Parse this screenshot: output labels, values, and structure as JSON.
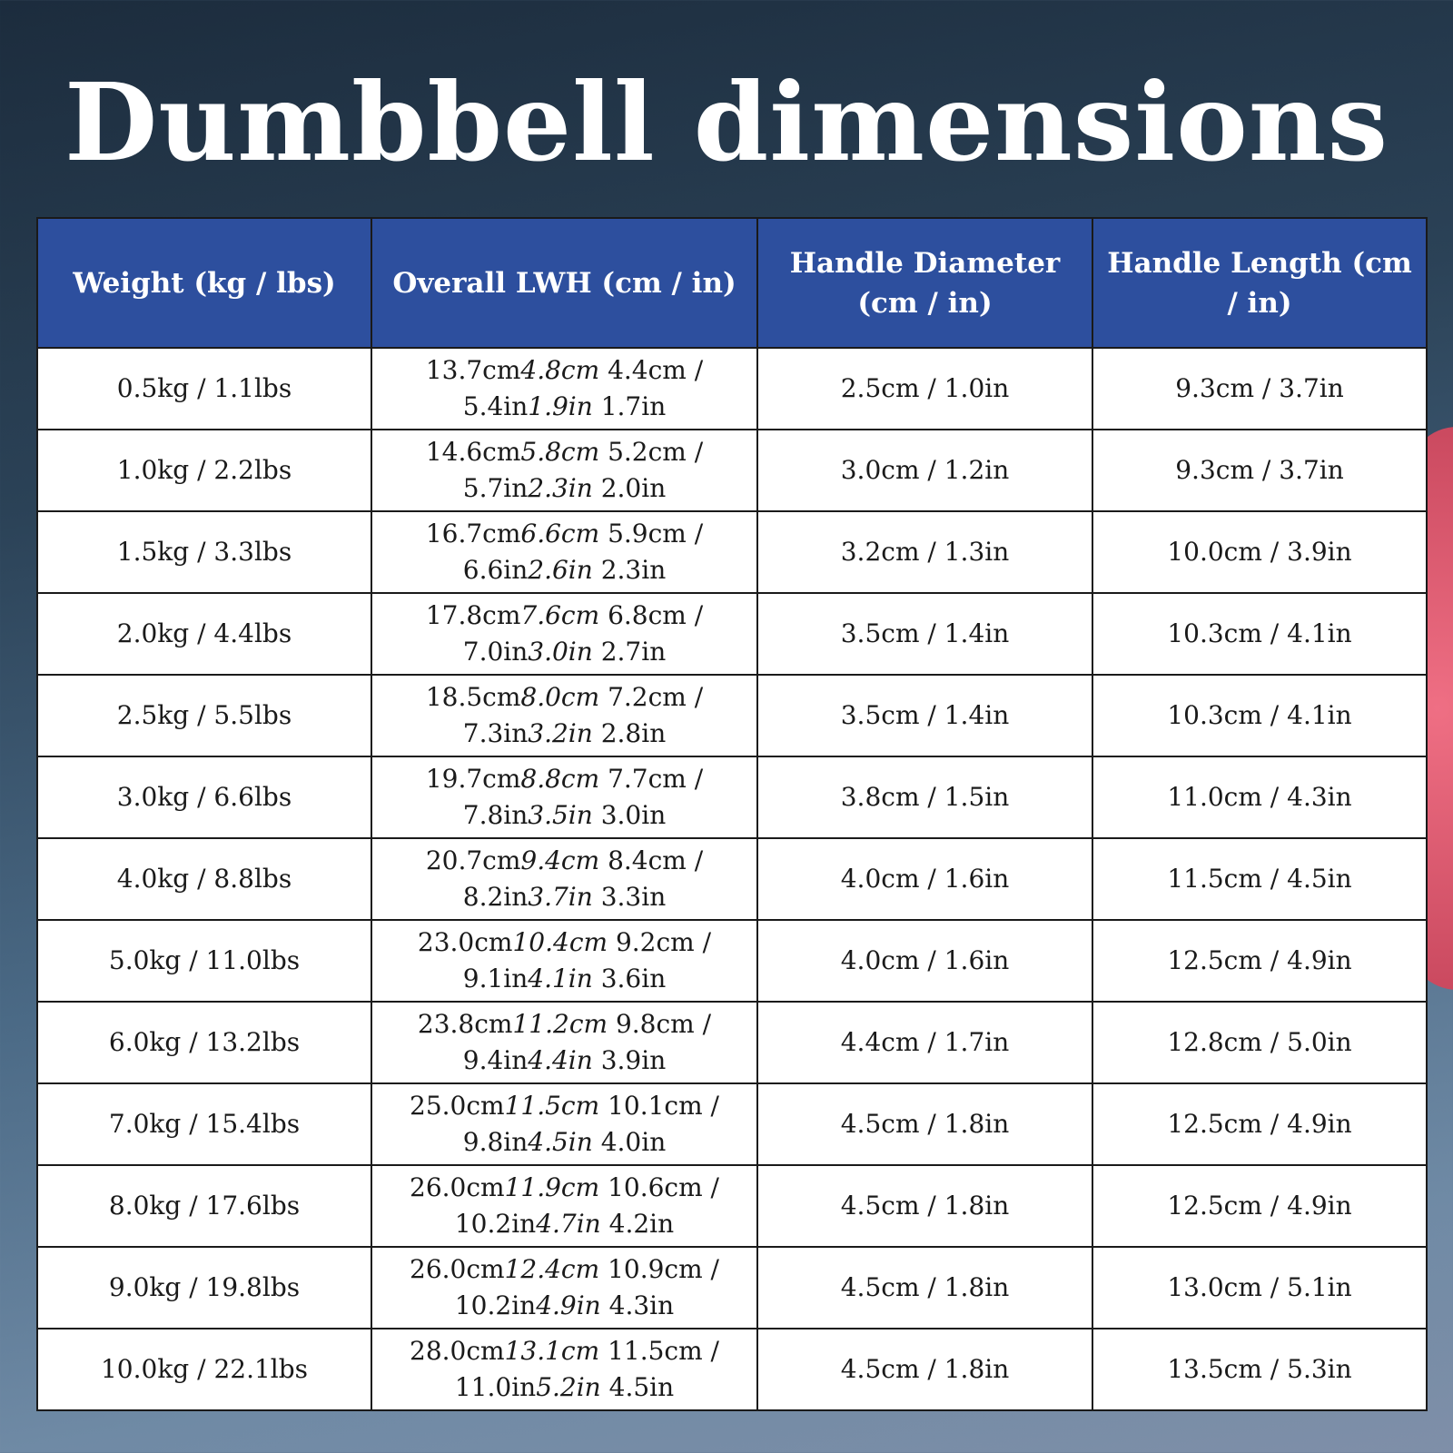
{
  "title": "Dumbbell dimensions",
  "table": {
    "headers": [
      "Weight (kg / lbs)",
      "Overall LWH (cm / in)",
      "Handle Diameter (cm / in)",
      "Handle Length (cm / in)"
    ],
    "rows": [
      [
        "0.5kg / 1.1lbs",
        [
          "13.7cm",
          "4.8cm",
          "4.4cm /",
          "5.4in",
          "1.9in",
          "1.7in"
        ],
        "2.5cm / 1.0in",
        "9.3cm / 3.7in"
      ],
      [
        "1.0kg / 2.2lbs",
        [
          "14.6cm",
          "5.8cm",
          "5.2cm /",
          "5.7in",
          "2.3in",
          "2.0in"
        ],
        "3.0cm / 1.2in",
        "9.3cm / 3.7in"
      ],
      [
        "1.5kg / 3.3lbs",
        [
          "16.7cm",
          "6.6cm",
          "5.9cm /",
          "6.6in",
          "2.6in",
          "2.3in"
        ],
        "3.2cm / 1.3in",
        "10.0cm / 3.9in"
      ],
      [
        "2.0kg / 4.4lbs",
        [
          "17.8cm",
          "7.6cm",
          "6.8cm /",
          "7.0in",
          "3.0in",
          "2.7in"
        ],
        "3.5cm / 1.4in",
        "10.3cm / 4.1in"
      ],
      [
        "2.5kg / 5.5lbs",
        [
          "18.5cm",
          "8.0cm",
          "7.2cm /",
          "7.3in",
          "3.2in",
          "2.8in"
        ],
        "3.5cm / 1.4in",
        "10.3cm / 4.1in"
      ],
      [
        "3.0kg / 6.6lbs",
        [
          "19.7cm",
          "8.8cm",
          "7.7cm /",
          "7.8in",
          "3.5in",
          "3.0in"
        ],
        "3.8cm / 1.5in",
        "11.0cm / 4.3in"
      ],
      [
        "4.0kg / 8.8lbs",
        [
          "20.7cm",
          "9.4cm",
          "8.4cm /",
          "8.2in",
          "3.7in",
          "3.3in"
        ],
        "4.0cm / 1.6in",
        "11.5cm / 4.5in"
      ],
      [
        "5.0kg / 11.0lbs",
        [
          "23.0cm",
          "10.4cm",
          "9.2cm /",
          "9.1in",
          "4.1in",
          "3.6in"
        ],
        "4.0cm / 1.6in",
        "12.5cm / 4.9in"
      ],
      [
        "6.0kg / 13.2lbs",
        [
          "23.8cm",
          "11.2cm",
          "9.8cm /",
          "9.4in",
          "4.4in",
          "3.9in"
        ],
        "4.4cm / 1.7in",
        "12.8cm / 5.0in"
      ],
      [
        "7.0kg / 15.4lbs",
        [
          "25.0cm",
          "11.5cm",
          "10.1cm /",
          "9.8in",
          "4.5in",
          "4.0in"
        ],
        "4.5cm / 1.8in",
        "12.5cm / 4.9in"
      ],
      [
        "8.0kg / 17.6lbs",
        [
          "26.0cm",
          "11.9cm",
          "10.6cm /",
          "10.2in",
          "4.7in",
          "4.2in"
        ],
        "4.5cm / 1.8in",
        "12.5cm / 4.9in"
      ],
      [
        "9.0kg / 19.8lbs",
        [
          "26.0cm",
          "12.4cm",
          "10.9cm /",
          "10.2in",
          "4.9in",
          "4.3in"
        ],
        "4.5cm / 1.8in",
        "13.0cm / 5.1in"
      ],
      [
        "10.0kg / 22.1lbs",
        [
          "28.0cm",
          "13.1cm",
          "11.5cm /",
          "11.0in",
          "5.2in",
          "4.5in"
        ],
        "4.5cm / 1.8in",
        "13.5cm / 5.3in"
      ]
    ]
  }
}
